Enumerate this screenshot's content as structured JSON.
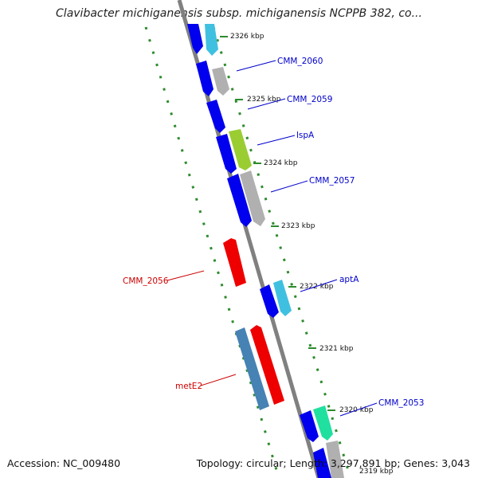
{
  "title": "Clavibacter michiganensis subsp. michiganensis NCPPB 382, co...",
  "footer": {
    "accession": "Accession: NC_009480",
    "stats": "Topology: circular; Length: 3,297,891 bp; Genes: 3,043"
  },
  "kbp_labels": [
    "2326 kbp",
    "2325 kbp",
    "2324 kbp",
    "2323 kbp",
    "2322 kbp",
    "2321 kbp",
    "2320 kbp",
    "2319 kbp"
  ],
  "gene_labels": [
    {
      "name": "CMM_2060",
      "color": "#0000cc"
    },
    {
      "name": "CMM_2059",
      "color": "#0000cc"
    },
    {
      "name": "lspA",
      "color": "#0000cc"
    },
    {
      "name": "CMM_2057",
      "color": "#0000cc"
    },
    {
      "name": "aptA",
      "color": "#0000cc"
    },
    {
      "name": "CMM_2053",
      "color": "#0000cc"
    },
    {
      "name": "CMM_2056",
      "color": "#cc0000"
    },
    {
      "name": "metE2",
      "color": "#cc0000"
    }
  ],
  "colors": {
    "backbone": "#808080",
    "ticks": "#2e8b2e",
    "forward_cds": "#0000ee",
    "reverse_cds": "#ee0000",
    "rna_blue": "#4682b4",
    "cyan": "#40c0e0",
    "gray": "#b0b0b0",
    "green": "#9acd32",
    "teal": "#20e0a0"
  }
}
